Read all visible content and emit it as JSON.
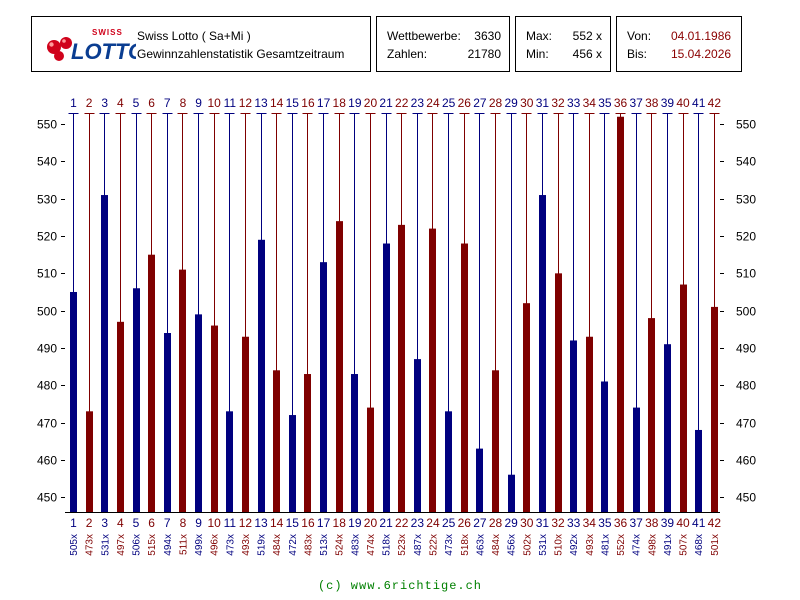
{
  "header": {
    "title": "Swiss Lotto ( Sa+Mi )",
    "subtitle": "Gewinnzahlenstatistik Gesamtzeitraum",
    "logo_text_top": "SWISS",
    "logo_text_main": "LOTTO"
  },
  "stats": {
    "competitions_label": "Wettbewerbe:",
    "competitions_value": "3630",
    "numbers_label": "Zahlen:",
    "numbers_value": "21780"
  },
  "maxmin": {
    "max_label": "Max:",
    "max_value": "552 x",
    "min_label": "Min:",
    "min_value": "456 x"
  },
  "dates": {
    "from_label": "Von:",
    "from_value": "04.01.1986",
    "to_label": "Bis:",
    "to_value": "15.04.2026"
  },
  "colors": {
    "blue": "#00007f",
    "red": "#7f0000",
    "footer": "#008000"
  },
  "chart_data": {
    "type": "bar",
    "title": "Gewinnzahlenstatistik Gesamtzeitraum",
    "categories": [
      "1",
      "2",
      "3",
      "4",
      "5",
      "6",
      "7",
      "8",
      "9",
      "10",
      "11",
      "12",
      "13",
      "14",
      "15",
      "16",
      "17",
      "18",
      "19",
      "20",
      "21",
      "22",
      "23",
      "24",
      "25",
      "26",
      "27",
      "28",
      "29",
      "30",
      "31",
      "32",
      "33",
      "34",
      "35",
      "36",
      "37",
      "38",
      "39",
      "40",
      "41",
      "42"
    ],
    "values": [
      505,
      473,
      531,
      497,
      506,
      515,
      494,
      511,
      499,
      496,
      473,
      493,
      519,
      484,
      472,
      483,
      513,
      524,
      483,
      474,
      518,
      523,
      487,
      522,
      473,
      518,
      463,
      484,
      456,
      502,
      531,
      510,
      492,
      493,
      481,
      552,
      474,
      498,
      491,
      507,
      468,
      501
    ],
    "value_labels": [
      "505x",
      "473x",
      "531x",
      "497x",
      "506x",
      "515x",
      "494x",
      "511x",
      "499x",
      "496x",
      "473x",
      "493x",
      "519x",
      "484x",
      "472x",
      "483x",
      "513x",
      "524x",
      "483x",
      "474x",
      "518x",
      "523x",
      "487x",
      "522x",
      "473x",
      "518x",
      "463x",
      "484x",
      "456x",
      "502x",
      "531x",
      "510x",
      "492x",
      "493x",
      "481x",
      "552x",
      "474x",
      "498x",
      "491x",
      "507x",
      "468x",
      "501x"
    ],
    "y_ticks": [
      "450",
      "460",
      "470",
      "480",
      "490",
      "500",
      "510",
      "520",
      "530",
      "540",
      "550"
    ],
    "ylim": [
      446,
      553
    ],
    "xlabel": "",
    "ylabel": ""
  },
  "footer": "(c) www.6richtige.ch"
}
